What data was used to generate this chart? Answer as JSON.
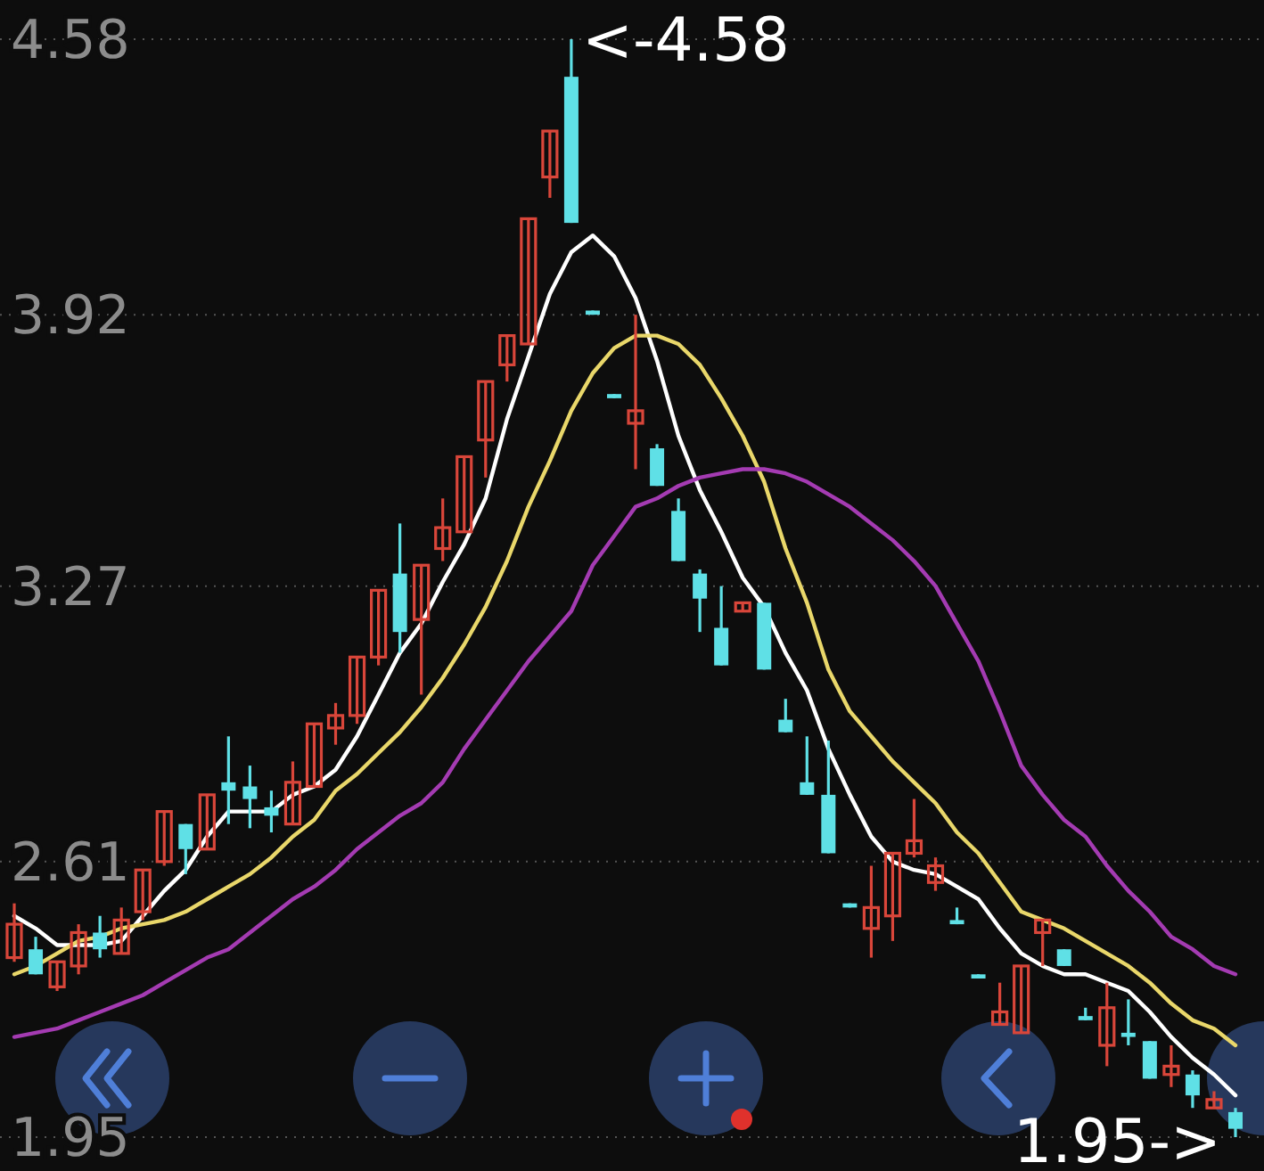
{
  "chart_data": {
    "type": "candlestick",
    "ylim": [
      1.95,
      4.58
    ],
    "yticks": [
      4.58,
      3.92,
      3.27,
      2.61,
      1.95
    ],
    "grid": "y",
    "tick_labels": "y",
    "categories": [
      null,
      null,
      null,
      null,
      null,
      null,
      null,
      null,
      null,
      null,
      null,
      null,
      null,
      null,
      null,
      null,
      null,
      null,
      null,
      null,
      null,
      null,
      null,
      null,
      null,
      null,
      null,
      null,
      null,
      null,
      null,
      null,
      null,
      null,
      null,
      null,
      null,
      null,
      null,
      null,
      null,
      null,
      null,
      null,
      null,
      null,
      null,
      null,
      null,
      null,
      null,
      null,
      null,
      null,
      null,
      null,
      null,
      null
    ],
    "ohlc": [
      [
        2.38,
        2.51,
        2.37,
        2.46
      ],
      [
        2.4,
        2.43,
        2.34,
        2.34
      ],
      [
        2.31,
        2.37,
        2.3,
        2.37
      ],
      [
        2.36,
        2.46,
        2.34,
        2.44
      ],
      [
        2.44,
        2.48,
        2.38,
        2.4
      ],
      [
        2.39,
        2.5,
        2.39,
        2.47
      ],
      [
        2.49,
        2.59,
        2.47,
        2.59
      ],
      [
        2.61,
        2.73,
        2.6,
        2.73
      ],
      [
        2.7,
        2.7,
        2.58,
        2.64
      ],
      [
        2.64,
        2.77,
        2.64,
        2.77
      ],
      [
        2.8,
        2.91,
        2.7,
        2.78
      ],
      [
        2.79,
        2.84,
        2.69,
        2.76
      ],
      [
        2.74,
        2.78,
        2.68,
        2.72
      ],
      [
        2.7,
        2.85,
        2.7,
        2.8
      ],
      [
        2.79,
        2.94,
        2.79,
        2.94
      ],
      [
        2.93,
        2.99,
        2.89,
        2.96
      ],
      [
        2.96,
        3.1,
        2.94,
        3.1
      ],
      [
        3.1,
        3.26,
        3.08,
        3.26
      ],
      [
        3.3,
        3.42,
        3.11,
        3.16
      ],
      [
        3.19,
        3.32,
        3.01,
        3.32
      ],
      [
        3.36,
        3.48,
        3.33,
        3.41
      ],
      [
        3.4,
        3.58,
        3.4,
        3.58
      ],
      [
        3.62,
        3.76,
        3.53,
        3.76
      ],
      [
        3.8,
        3.87,
        3.76,
        3.87
      ],
      [
        3.85,
        4.15,
        3.85,
        4.15
      ],
      [
        4.25,
        4.36,
        4.2,
        4.36
      ],
      [
        4.49,
        4.58,
        4.14,
        4.14
      ],
      [
        3.93,
        3.93,
        3.92,
        3.92
      ],
      [
        3.73,
        3.73,
        3.72,
        3.72
      ],
      [
        3.66,
        3.92,
        3.55,
        3.69
      ],
      [
        3.6,
        3.61,
        3.51,
        3.51
      ],
      [
        3.45,
        3.48,
        3.33,
        3.33
      ],
      [
        3.3,
        3.31,
        3.16,
        3.24
      ],
      [
        3.17,
        3.27,
        3.08,
        3.08
      ],
      [
        3.21,
        3.23,
        3.21,
        3.23
      ],
      [
        3.23,
        3.23,
        3.07,
        3.07
      ],
      [
        2.95,
        3.0,
        2.92,
        2.92
      ],
      [
        2.8,
        2.91,
        2.77,
        2.77
      ],
      [
        2.77,
        2.9,
        2.63,
        2.63
      ],
      [
        2.51,
        2.51,
        2.5,
        2.5
      ],
      [
        2.45,
        2.6,
        2.38,
        2.5
      ],
      [
        2.48,
        2.63,
        2.42,
        2.63
      ],
      [
        2.63,
        2.76,
        2.62,
        2.66
      ],
      [
        2.56,
        2.62,
        2.54,
        2.6
      ],
      [
        2.47,
        2.5,
        2.46,
        2.46
      ],
      [
        2.34,
        2.34,
        2.33,
        2.33
      ],
      [
        2.22,
        2.32,
        2.22,
        2.25
      ],
      [
        2.2,
        2.36,
        2.2,
        2.36
      ],
      [
        2.44,
        2.47,
        2.36,
        2.47
      ],
      [
        2.4,
        2.4,
        2.36,
        2.36
      ],
      [
        2.24,
        2.26,
        2.23,
        2.23
      ],
      [
        2.17,
        2.32,
        2.12,
        2.26
      ],
      [
        2.2,
        2.28,
        2.17,
        2.19
      ],
      [
        2.18,
        2.18,
        2.09,
        2.09
      ],
      [
        2.1,
        2.17,
        2.07,
        2.12
      ],
      [
        2.1,
        2.11,
        2.02,
        2.05
      ],
      [
        2.02,
        2.06,
        2.02,
        2.04
      ],
      [
        2.01,
        2.02,
        1.95,
        1.97
      ]
    ],
    "colors": [
      "#d9463a",
      "#5fe0e6",
      "#d9463a",
      "#d9463a",
      "#5fe0e6",
      "#d9463a",
      "#d9463a",
      "#d9463a",
      "#5fe0e6",
      "#d9463a",
      "#5fe0e6",
      "#5fe0e6",
      "#5fe0e6",
      "#d9463a",
      "#d9463a",
      "#d9463a",
      "#d9463a",
      "#d9463a",
      "#5fe0e6",
      "#d9463a",
      "#d9463a",
      "#d9463a",
      "#d9463a",
      "#d9463a",
      "#d9463a",
      "#d9463a",
      "#5fe0e6",
      "#5fe0e6",
      "#5fe0e6",
      "#d9463a",
      "#5fe0e6",
      "#5fe0e6",
      "#5fe0e6",
      "#5fe0e6",
      "#d9463a",
      "#5fe0e6",
      "#5fe0e6",
      "#5fe0e6",
      "#5fe0e6",
      "#5fe0e6",
      "#d9463a",
      "#d9463a",
      "#d9463a",
      "#d9463a",
      "#5fe0e6",
      "#5fe0e6",
      "#d9463a",
      "#d9463a",
      "#d9463a",
      "#5fe0e6",
      "#5fe0e6",
      "#d9463a",
      "#5fe0e6",
      "#5fe0e6",
      "#d9463a",
      "#5fe0e6",
      "#d9463a",
      "#5fe0e6"
    ],
    "series": [
      {
        "type": "line",
        "color": "#ffffff",
        "values": [
          2.48,
          2.45,
          2.41,
          2.41,
          2.41,
          2.42,
          2.48,
          2.54,
          2.59,
          2.67,
          2.73,
          2.73,
          2.73,
          2.77,
          2.79,
          2.83,
          2.91,
          3.01,
          3.11,
          3.18,
          3.28,
          3.37,
          3.48,
          3.67,
          3.82,
          3.97,
          4.07,
          4.11,
          4.06,
          3.96,
          3.81,
          3.63,
          3.5,
          3.4,
          3.29,
          3.22,
          3.11,
          3.02,
          2.88,
          2.77,
          2.67,
          2.61,
          2.59,
          2.58,
          2.55,
          2.52,
          2.45,
          2.39,
          2.36,
          2.34,
          2.34,
          2.32,
          2.3,
          2.25,
          2.19,
          2.14,
          2.1,
          2.05
        ]
      },
      {
        "type": "line",
        "color": "#e9d76a",
        "values": [
          2.34,
          2.36,
          2.39,
          2.42,
          2.43,
          2.45,
          2.46,
          2.47,
          2.49,
          2.52,
          2.55,
          2.58,
          2.62,
          2.67,
          2.71,
          2.78,
          2.82,
          2.87,
          2.92,
          2.98,
          3.05,
          3.13,
          3.22,
          3.33,
          3.46,
          3.57,
          3.69,
          3.78,
          3.84,
          3.87,
          3.87,
          3.85,
          3.8,
          3.72,
          3.63,
          3.52,
          3.36,
          3.23,
          3.07,
          2.97,
          2.91,
          2.85,
          2.8,
          2.75,
          2.68,
          2.63,
          2.56,
          2.49,
          2.47,
          2.45,
          2.42,
          2.39,
          2.36,
          2.32,
          2.27,
          2.23,
          2.21,
          2.17
        ]
      },
      {
        "type": "line",
        "color": "#a43bb2",
        "values": [
          2.19,
          2.2,
          2.21,
          2.23,
          2.25,
          2.27,
          2.29,
          2.32,
          2.35,
          2.38,
          2.4,
          2.44,
          2.48,
          2.52,
          2.55,
          2.59,
          2.64,
          2.68,
          2.72,
          2.75,
          2.8,
          2.88,
          2.95,
          3.02,
          3.09,
          3.15,
          3.21,
          3.32,
          3.39,
          3.46,
          3.48,
          3.51,
          3.53,
          3.54,
          3.55,
          3.55,
          3.54,
          3.52,
          3.49,
          3.46,
          3.42,
          3.38,
          3.33,
          3.27,
          3.18,
          3.09,
          2.97,
          2.84,
          2.77,
          2.71,
          2.67,
          2.6,
          2.54,
          2.49,
          2.43,
          2.4,
          2.36,
          2.34
        ]
      }
    ],
    "annotations": [
      "<-4.58",
      "1.95->"
    ]
  }
}
